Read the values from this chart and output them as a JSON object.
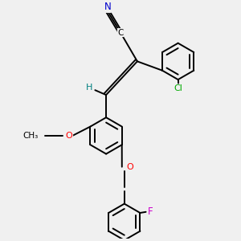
{
  "bg_color": "#f0f0f0",
  "atoms": {
    "N": {
      "color": "#0000cc"
    },
    "C": {
      "color": "#000000"
    },
    "O": {
      "color": "#ff0000"
    },
    "Cl": {
      "color": "#00aa00"
    },
    "F": {
      "color": "#cc00cc"
    },
    "H": {
      "color": "#008080"
    }
  },
  "lw": 1.4,
  "ring_r": 0.38,
  "figsize": [
    3.0,
    3.0
  ],
  "dpi": 100,
  "xlim": [
    -1.6,
    2.8
  ],
  "ylim": [
    -2.6,
    2.2
  ]
}
